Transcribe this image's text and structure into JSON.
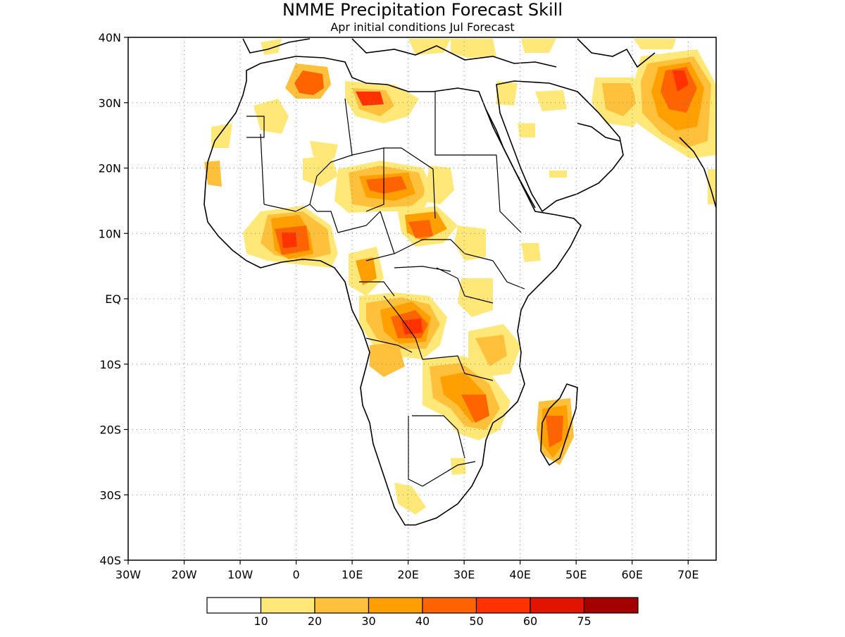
{
  "title": "NMME Precipitation Forecast Skill",
  "subtitle": "Apr initial conditions  Jul Forecast",
  "axes": {
    "lon_labels": [
      "30W",
      "20W",
      "10W",
      "0",
      "10E",
      "20E",
      "30E",
      "40E",
      "50E",
      "60E",
      "70E"
    ],
    "lat_labels": [
      "40N",
      "30N",
      "20N",
      "10N",
      "EQ",
      "10S",
      "20S",
      "30S",
      "40S"
    ],
    "lon_values": [
      -30,
      -20,
      -10,
      0,
      10,
      20,
      30,
      40,
      50,
      60,
      70
    ],
    "lat_values": [
      40,
      30,
      20,
      10,
      0,
      -10,
      -20,
      -30,
      -40
    ],
    "lon_range": [
      -30,
      75
    ],
    "lat_range": [
      -40,
      40
    ],
    "grid": "dotted"
  },
  "legend": {
    "colors": [
      "#ffffff",
      "#ffe878",
      "#ffc03c",
      "#ffa000",
      "#ff6400",
      "#ff3200",
      "#e11400",
      "#a50000"
    ],
    "tick_labels": [
      "10",
      "20",
      "30",
      "40",
      "50",
      "60",
      "75"
    ]
  },
  "skill_regions": [
    {
      "lon": 13,
      "lat": 31,
      "rx": 5,
      "ry": 2.5,
      "level": 4
    },
    {
      "lon": 4,
      "lat": 33,
      "rx": 3,
      "ry": 2.5,
      "level": 4
    },
    {
      "lon": 17,
      "lat": 18,
      "rx": 5,
      "ry": 3,
      "level": 4
    },
    {
      "lon": -1,
      "lat": 11,
      "rx": 3,
      "ry": 3,
      "level": 4
    },
    {
      "lon": 0,
      "lat": 8,
      "rx": 3,
      "ry": 2.5,
      "level": 5
    },
    {
      "lon": 22,
      "lat": 10,
      "rx": 3,
      "ry": 2,
      "level": 4
    },
    {
      "lon": 20,
      "lat": -4,
      "rx": 4,
      "ry": 3,
      "level": 5
    },
    {
      "lon": 67,
      "lat": 34,
      "rx": 4,
      "ry": 2,
      "level": 5
    },
    {
      "lon": 46,
      "lat": -19,
      "rx": 2,
      "ry": 4,
      "level": 4
    },
    {
      "lon": 34,
      "lat": -18,
      "rx": 2,
      "ry": 3,
      "level": 4
    }
  ]
}
